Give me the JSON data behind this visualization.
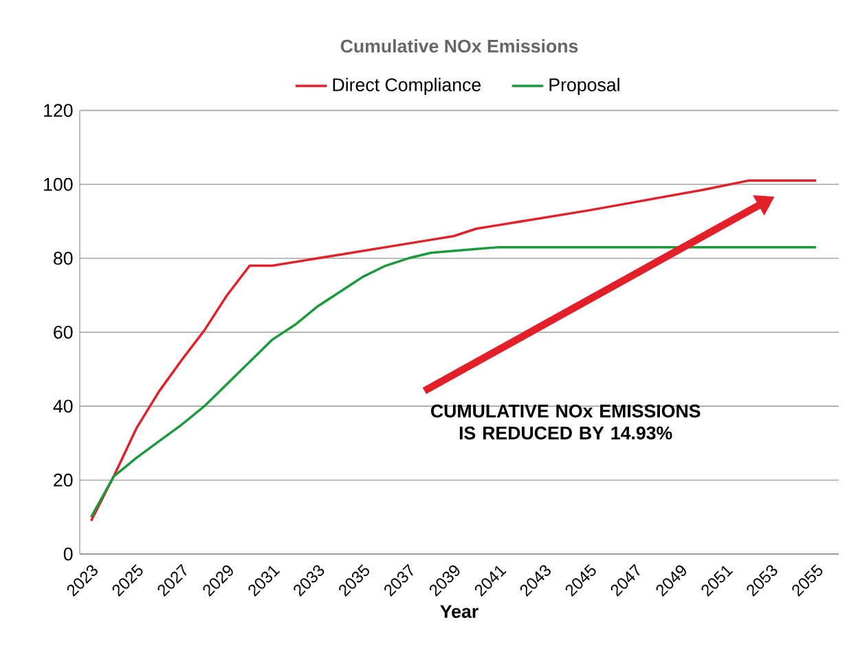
{
  "chart_data": {
    "type": "line",
    "title": "Cumulative NOx Emissions",
    "xlabel": "Year",
    "x": [
      2023,
      2024,
      2025,
      2026,
      2027,
      2028,
      2029,
      2030,
      2031,
      2032,
      2033,
      2034,
      2035,
      2036,
      2037,
      2038,
      2039,
      2040,
      2041,
      2045,
      2050,
      2052,
      2053,
      2055
    ],
    "series": [
      {
        "name": "Direct Compliance",
        "color": "#e3202a",
        "values": [
          9,
          21,
          34,
          44,
          52.5,
          60.5,
          70,
          78,
          78,
          79,
          80,
          81,
          82,
          83,
          84,
          85,
          86,
          88,
          89,
          93,
          98.5,
          101,
          101,
          101
        ]
      },
      {
        "name": "Proposal",
        "color": "#1a9a3a",
        "values": [
          10,
          21,
          26,
          30.5,
          35,
          40,
          46,
          52,
          58,
          62,
          67,
          71,
          75,
          78,
          80,
          81.5,
          82,
          82.5,
          83,
          83,
          83,
          83,
          83,
          83
        ]
      }
    ],
    "xlim": [
      2022.5,
      2056
    ],
    "xticks": [
      2023,
      2025,
      2027,
      2029,
      2031,
      2033,
      2035,
      2037,
      2039,
      2041,
      2043,
      2045,
      2047,
      2049,
      2051,
      2053,
      2055
    ],
    "ylim": [
      0,
      120
    ],
    "yticks": [
      0,
      20,
      40,
      60,
      80,
      100,
      120
    ],
    "grid": "y",
    "legend": "top",
    "marker": "none",
    "line_style": "solid",
    "annotations": [
      "CUMULATIVE NOx EMISSIONS IS REDUCED BY 14.93%"
    ]
  }
}
